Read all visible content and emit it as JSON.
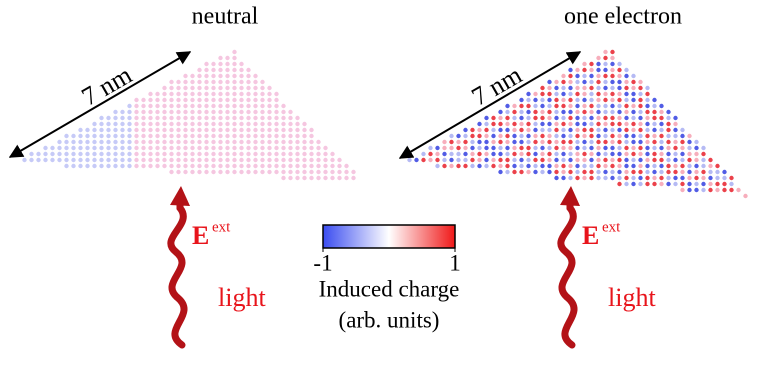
{
  "panels": [
    {
      "title": "neutral",
      "scale_label": "7 nm",
      "field_label": "E",
      "field_superscript": "ext",
      "light_label": "light"
    },
    {
      "title": "one electron",
      "scale_label": "7 nm",
      "field_label": "E",
      "field_superscript": "ext",
      "light_label": "light"
    }
  ],
  "colorbar": {
    "min": -1,
    "max": 1,
    "label": "Induced charge",
    "units": "(arb. units)"
  }
}
